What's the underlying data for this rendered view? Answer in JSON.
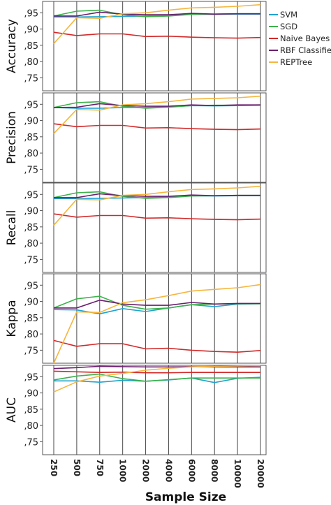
{
  "chart_data": {
    "type": "line",
    "xlabel": "Sample Size",
    "categories": [
      "250",
      "500",
      "750",
      "1000",
      "2000",
      "4000",
      "6000",
      "8000",
      "10000",
      "20000"
    ],
    "ytick_labels": [
      ",75",
      ",80",
      ",85",
      ",90",
      ",95"
    ],
    "yticks": [
      0.75,
      0.8,
      0.85,
      0.9,
      0.95
    ],
    "ylim": [
      0.71,
      0.985
    ],
    "grid": true,
    "legend_position": "top-right",
    "legend": [
      "SVM",
      "SGD",
      "Naive Bayes",
      "RBF Classifier",
      "REPTree"
    ],
    "colors": {
      "SVM": "#1fa3cf",
      "SGD": "#3cb24a",
      "Naive Bayes": "#d22a2a",
      "RBF Classifier": "#6a1f6e",
      "REPTree": "#f5b63d"
    },
    "panels": [
      {
        "ylabel": "Accuracy",
        "series": [
          {
            "name": "SVM",
            "values": [
              0.937,
              0.937,
              0.938,
              0.939,
              0.94,
              0.942,
              0.946,
              0.945,
              0.946,
              0.946
            ]
          },
          {
            "name": "SGD",
            "values": [
              0.94,
              0.955,
              0.958,
              0.944,
              0.938,
              0.94,
              0.945,
              0.946,
              0.947,
              0.947
            ]
          },
          {
            "name": "Naive Bayes",
            "values": [
              0.89,
              0.88,
              0.885,
              0.885,
              0.877,
              0.878,
              0.875,
              0.873,
              0.872,
              0.874
            ]
          },
          {
            "name": "RBF Classifier",
            "values": [
              0.94,
              0.94,
              0.952,
              0.946,
              0.944,
              0.944,
              0.948,
              0.946,
              0.947,
              0.947
            ]
          },
          {
            "name": "REPTree",
            "values": [
              0.855,
              0.935,
              0.933,
              0.947,
              0.95,
              0.958,
              0.965,
              0.967,
              0.97,
              0.975
            ]
          }
        ]
      },
      {
        "ylabel": "Precision",
        "series": [
          {
            "name": "SVM",
            "values": [
              0.94,
              0.938,
              0.938,
              0.94,
              0.94,
              0.942,
              0.946,
              0.945,
              0.946,
              0.947
            ]
          },
          {
            "name": "SGD",
            "values": [
              0.94,
              0.955,
              0.958,
              0.944,
              0.938,
              0.941,
              0.946,
              0.947,
              0.947,
              0.948
            ]
          },
          {
            "name": "Naive Bayes",
            "values": [
              0.89,
              0.881,
              0.885,
              0.885,
              0.877,
              0.878,
              0.875,
              0.873,
              0.872,
              0.874
            ]
          },
          {
            "name": "RBF Classifier",
            "values": [
              0.94,
              0.941,
              0.952,
              0.946,
              0.944,
              0.944,
              0.948,
              0.946,
              0.948,
              0.948
            ]
          },
          {
            "name": "REPTree",
            "values": [
              0.86,
              0.934,
              0.932,
              0.948,
              0.952,
              0.958,
              0.966,
              0.968,
              0.97,
              0.975
            ]
          }
        ]
      },
      {
        "ylabel": "Recall",
        "series": [
          {
            "name": "SVM",
            "values": [
              0.937,
              0.937,
              0.938,
              0.939,
              0.94,
              0.942,
              0.946,
              0.945,
              0.946,
              0.946
            ]
          },
          {
            "name": "SGD",
            "values": [
              0.94,
              0.955,
              0.958,
              0.944,
              0.938,
              0.94,
              0.945,
              0.946,
              0.947,
              0.947
            ]
          },
          {
            "name": "Naive Bayes",
            "values": [
              0.89,
              0.88,
              0.885,
              0.885,
              0.877,
              0.878,
              0.875,
              0.873,
              0.872,
              0.874
            ]
          },
          {
            "name": "RBF Classifier",
            "values": [
              0.94,
              0.94,
              0.952,
              0.946,
              0.944,
              0.944,
              0.948,
              0.946,
              0.947,
              0.947
            ]
          },
          {
            "name": "REPTree",
            "values": [
              0.855,
              0.935,
              0.933,
              0.947,
              0.95,
              0.958,
              0.965,
              0.967,
              0.97,
              0.975
            ]
          }
        ]
      },
      {
        "ylabel": "Kappa",
        "series": [
          {
            "name": "SVM",
            "values": [
              0.875,
              0.874,
              0.862,
              0.878,
              0.869,
              0.88,
              0.89,
              0.884,
              0.892,
              0.893
            ]
          },
          {
            "name": "SGD",
            "values": [
              0.88,
              0.908,
              0.916,
              0.888,
              0.876,
              0.88,
              0.89,
              0.892,
              0.893,
              0.893
            ]
          },
          {
            "name": "Naive Bayes",
            "values": [
              0.78,
              0.762,
              0.77,
              0.77,
              0.754,
              0.756,
              0.75,
              0.746,
              0.744,
              0.749
            ]
          },
          {
            "name": "RBF Classifier",
            "values": [
              0.88,
              0.88,
              0.904,
              0.892,
              0.888,
              0.888,
              0.897,
              0.892,
              0.894,
              0.894
            ]
          },
          {
            "name": "REPTree",
            "values": [
              0.71,
              0.868,
              0.866,
              0.896,
              0.905,
              0.918,
              0.932,
              0.937,
              0.942,
              0.952
            ]
          }
        ]
      },
      {
        "ylabel": "AUC",
        "series": [
          {
            "name": "SVM",
            "values": [
              0.937,
              0.937,
              0.933,
              0.939,
              0.936,
              0.94,
              0.946,
              0.932,
              0.945,
              0.948
            ]
          },
          {
            "name": "SGD",
            "values": [
              0.94,
              0.952,
              0.958,
              0.944,
              0.936,
              0.941,
              0.946,
              0.946,
              0.946,
              0.946
            ]
          },
          {
            "name": "Naive Bayes",
            "values": [
              0.967,
              0.965,
              0.963,
              0.964,
              0.962,
              0.962,
              0.963,
              0.963,
              0.963,
              0.963
            ]
          },
          {
            "name": "RBF Classifier",
            "values": [
              0.975,
              0.978,
              0.982,
              0.981,
              0.98,
              0.98,
              0.981,
              0.98,
              0.98,
              0.98
            ]
          },
          {
            "name": "REPTree",
            "values": [
              0.903,
              0.934,
              0.952,
              0.96,
              0.97,
              0.976,
              0.98,
              0.982,
              0.983,
              0.984
            ]
          }
        ]
      }
    ]
  }
}
